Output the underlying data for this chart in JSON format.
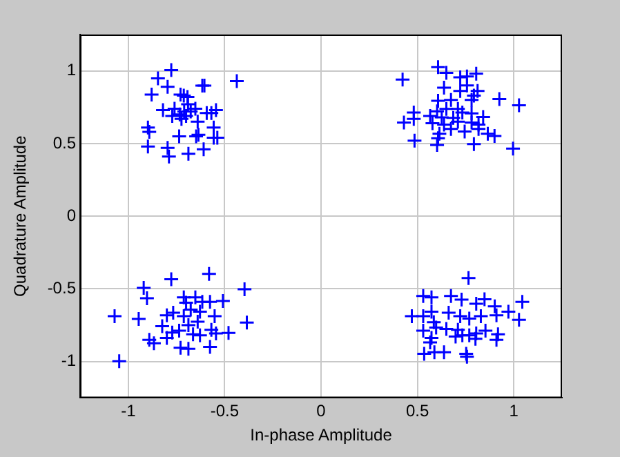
{
  "chart_data": {
    "type": "scatter",
    "xlabel": "In-phase Amplitude",
    "ylabel": "Quadrature Amplitude",
    "xlim": [
      -1.25,
      1.25
    ],
    "ylim": [
      -1.25,
      1.25
    ],
    "xticks": [
      -1,
      -0.5,
      0,
      0.5,
      1
    ],
    "yticks": [
      -1,
      -0.5,
      0,
      0.5,
      1
    ],
    "grid": true,
    "marker": "cross",
    "series": [
      {
        "color": "#0000ff",
        "x": [
          -0.777,
          -0.846,
          -0.796,
          -0.879,
          -0.729,
          -0.712,
          -0.693,
          -0.616,
          -0.605,
          -0.437,
          -0.82,
          -0.76,
          -0.772,
          -0.724,
          -0.7,
          -0.676,
          -0.652,
          -0.64,
          -0.69,
          -0.71,
          -0.733,
          -0.569,
          -0.545,
          -0.557,
          -0.538,
          -0.557,
          -0.636,
          -0.648,
          -0.736,
          -0.898,
          -0.891,
          -0.898,
          -0.796,
          -0.789,
          -0.688,
          -0.609,
          -0.593,
          0.607,
          0.65,
          0.423,
          0.722,
          0.757,
          0.805,
          0.757,
          0.638,
          0.722,
          0.812,
          0.793,
          0.925,
          1.027,
          0.607,
          0.674,
          0.781,
          0.481,
          0.602,
          0.65,
          0.71,
          0.733,
          0.566,
          0.626,
          0.686,
          0.781,
          0.841,
          0.481,
          0.578,
          0.638,
          0.71,
          0.781,
          0.43,
          0.614,
          0.674,
          0.745,
          0.817,
          0.865,
          0.9,
          0.607,
          0.485,
          0.602,
          0.793,
          0.996,
          0.817,
          -0.581,
          -0.777,
          -0.92,
          -0.397,
          -0.903,
          -0.712,
          -0.652,
          -0.576,
          -0.509,
          -1.071,
          -0.946,
          -0.8,
          -0.767,
          -0.712,
          -0.676,
          -0.7,
          -0.628,
          -0.616,
          -0.552,
          -0.688,
          -0.64,
          -0.385,
          -0.824,
          -0.772,
          -0.736,
          -0.664,
          -0.628,
          -0.569,
          -0.545,
          -0.48,
          -0.891,
          -0.867,
          -0.8,
          -0.729,
          -0.688,
          -0.576,
          -1.047,
          0.765,
          0.53,
          0.573,
          0.674,
          0.729,
          0.805,
          0.848,
          1.044,
          0.901,
          0.471,
          0.53,
          0.573,
          0.662,
          0.722,
          0.769,
          0.829,
          0.91,
          0.972,
          1.027,
          0.585,
          0.597,
          0.53,
          0.65,
          0.71,
          0.805,
          0.769,
          0.853,
          0.918,
          0.573,
          0.566,
          0.698,
          0.733,
          0.91,
          0.535,
          0.588,
          0.638,
          0.753,
          0.757,
          0.801
        ],
        "values": [
          1.005,
          0.949,
          0.89,
          0.837,
          0.837,
          0.83,
          0.82,
          0.899,
          0.899,
          0.93,
          0.73,
          0.74,
          0.69,
          0.67,
          0.69,
          0.72,
          0.74,
          0.65,
          0.77,
          0.72,
          0.7,
          0.71,
          0.73,
          0.61,
          0.54,
          0.54,
          0.56,
          0.55,
          0.55,
          0.61,
          0.58,
          0.48,
          0.47,
          0.41,
          0.43,
          0.46,
          0.71,
          1.026,
          0.986,
          0.94,
          0.955,
          0.961,
          0.98,
          0.9,
          0.884,
          0.862,
          0.862,
          0.83,
          0.806,
          0.763,
          0.794,
          0.8,
          0.8,
          0.713,
          0.722,
          0.738,
          0.738,
          0.713,
          0.69,
          0.68,
          0.676,
          0.707,
          0.682,
          0.67,
          0.64,
          0.63,
          0.65,
          0.645,
          0.645,
          0.567,
          0.6,
          0.583,
          0.6,
          0.567,
          0.552,
          0.536,
          0.52,
          0.49,
          0.496,
          0.465,
          0.63,
          -0.397,
          -0.434,
          -0.493,
          -0.502,
          -0.564,
          -0.558,
          -0.558,
          -0.589,
          -0.583,
          -0.688,
          -0.707,
          -0.682,
          -0.664,
          -0.688,
          -0.642,
          -0.595,
          -0.657,
          -0.589,
          -0.688,
          -0.75,
          -0.726,
          -0.732,
          -0.757,
          -0.8,
          -0.788,
          -0.812,
          -0.819,
          -0.781,
          -0.806,
          -0.803,
          -0.85,
          -0.874,
          -0.837,
          -0.905,
          -0.912,
          -0.899,
          -0.998,
          -0.425,
          -0.549,
          -0.558,
          -0.549,
          -0.574,
          -0.602,
          -0.571,
          -0.589,
          -0.62,
          -0.688,
          -0.688,
          -0.657,
          -0.664,
          -0.688,
          -0.704,
          -0.688,
          -0.682,
          -0.657,
          -0.713,
          -0.729,
          -0.766,
          -0.788,
          -0.775,
          -0.781,
          -0.806,
          -0.819,
          -0.788,
          -0.812,
          -0.837,
          -0.868,
          -0.828,
          -0.819,
          -0.85,
          -0.946,
          -0.936,
          -0.936,
          -0.946,
          -0.967,
          -0.843
        ]
      }
    ]
  }
}
